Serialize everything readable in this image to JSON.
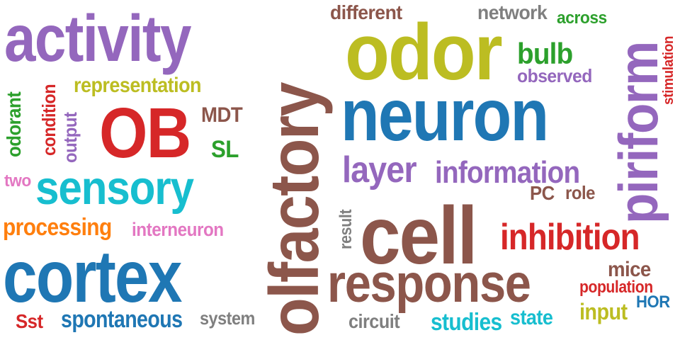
{
  "word_cloud": {
    "palette": {
      "purple": "#9467bd",
      "olive": "#bcbd22",
      "blue": "#1f77b4",
      "brown": "#8c564b",
      "red": "#d62728",
      "cyan": "#17becf",
      "green": "#2ca02c",
      "gray": "#7f7f7f",
      "pink": "#e377c2",
      "orange": "#ff7f0e"
    },
    "words": [
      {
        "text": "activity",
        "color": "#9467bd"
      },
      {
        "text": "olfactory",
        "color": "#8c564b"
      },
      {
        "text": "odor",
        "color": "#bcbd22"
      },
      {
        "text": "neuron",
        "color": "#1f77b4"
      },
      {
        "text": "piriform",
        "color": "#9467bd"
      },
      {
        "text": "cortex",
        "color": "#1f77b4"
      },
      {
        "text": "cell",
        "color": "#8c564b"
      },
      {
        "text": "OB",
        "color": "#d62728"
      },
      {
        "text": "sensory",
        "color": "#17becf"
      },
      {
        "text": "response",
        "color": "#8c564b"
      },
      {
        "text": "inhibition",
        "color": "#d62728"
      },
      {
        "text": "layer",
        "color": "#9467bd"
      },
      {
        "text": "information",
        "color": "#9467bd"
      },
      {
        "text": "bulb",
        "color": "#2ca02c"
      },
      {
        "text": "different",
        "color": "#8c564b"
      },
      {
        "text": "network",
        "color": "#7f7f7f"
      },
      {
        "text": "across",
        "color": "#2ca02c"
      },
      {
        "text": "observed",
        "color": "#9467bd"
      },
      {
        "text": "stimulation",
        "color": "#d62728"
      },
      {
        "text": "representation",
        "color": "#bcbd22"
      },
      {
        "text": "odorant",
        "color": "#2ca02c"
      },
      {
        "text": "condition",
        "color": "#d62728"
      },
      {
        "text": "output",
        "color": "#9467bd"
      },
      {
        "text": "MDT",
        "color": "#8c564b"
      },
      {
        "text": "SL",
        "color": "#2ca02c"
      },
      {
        "text": "two",
        "color": "#e377c2"
      },
      {
        "text": "processing",
        "color": "#ff7f0e"
      },
      {
        "text": "interneuron",
        "color": "#e377c2"
      },
      {
        "text": "PC",
        "color": "#8c564b"
      },
      {
        "text": "role",
        "color": "#8c564b"
      },
      {
        "text": "result",
        "color": "#7f7f7f"
      },
      {
        "text": "mice",
        "color": "#8c564b"
      },
      {
        "text": "population",
        "color": "#d62728"
      },
      {
        "text": "HOR",
        "color": "#1f77b4"
      },
      {
        "text": "input",
        "color": "#bcbd22"
      },
      {
        "text": "state",
        "color": "#17becf"
      },
      {
        "text": "studies",
        "color": "#17becf"
      },
      {
        "text": "circuit",
        "color": "#7f7f7f"
      },
      {
        "text": "system",
        "color": "#7f7f7f"
      },
      {
        "text": "spontaneous",
        "color": "#1f77b4"
      },
      {
        "text": "Sst",
        "color": "#d62728"
      }
    ]
  }
}
